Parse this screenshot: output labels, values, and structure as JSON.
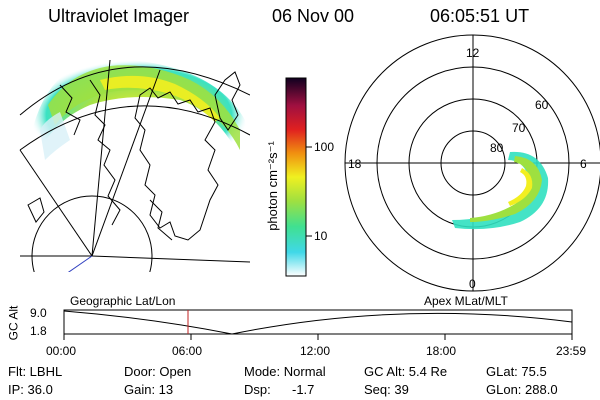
{
  "header": {
    "title": "Ultraviolet Imager",
    "date": "06 Nov 00",
    "time": "06:05:51 UT"
  },
  "colorbar": {
    "unit": "photon cm⁻²s⁻¹",
    "tick_high": "100",
    "tick_low": "10"
  },
  "polar_plot": {
    "labels": {
      "top": "12",
      "left": "18",
      "right": "6",
      "bottom": "0",
      "r60": "60",
      "r70": "70",
      "r80": "80"
    }
  },
  "panels": {
    "left_label": "Geographic Lat/Lon",
    "right_label": "Apex MLat/MLT"
  },
  "timeline": {
    "ylabel": "GC Alt",
    "y_max": "9.0",
    "y_min": "1.8",
    "x_ticks": [
      "00:00",
      "06:00",
      "12:00",
      "18:00",
      "23:59"
    ]
  },
  "info": {
    "flt": "Flt: LBHL",
    "door": "Door: Open",
    "mode": "Mode: Normal",
    "gcalt": "GC Alt: 5.4 Re",
    "glat": "GLat: 75.5",
    "ip": "IP: 36.0",
    "gain": "Gain: 13",
    "dsp_label": "Dsp:",
    "dsp_value": "-1.7",
    "seq": "Seq: 39",
    "glon": "GLon: 288.0"
  },
  "colors": {
    "aurora_low": "#30e0c0",
    "aurora_mid": "#9ee040",
    "aurora_high": "#f2ef20",
    "marker": "#c02020"
  }
}
